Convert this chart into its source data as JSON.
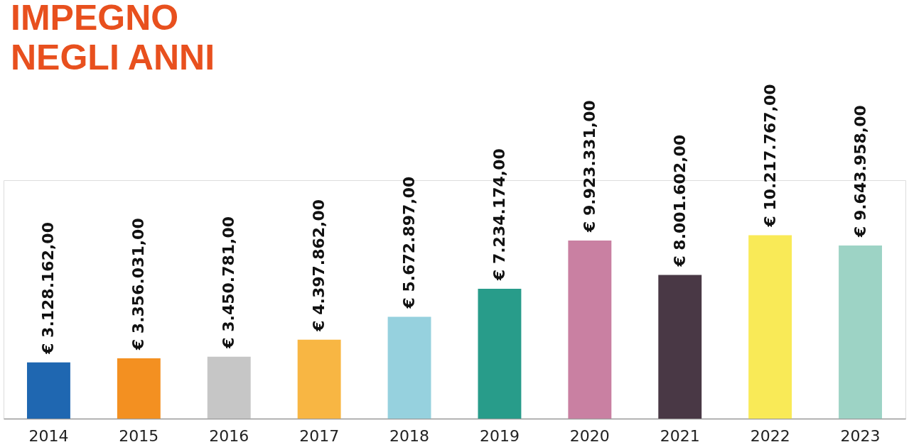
{
  "chart_data": {
    "type": "bar",
    "title": "IMPEGNO\nNEGLI ANNI",
    "categories": [
      "2014",
      "2015",
      "2016",
      "2017",
      "2018",
      "2019",
      "2020",
      "2021",
      "2022",
      "2023"
    ],
    "values": [
      3128162,
      3356031,
      3450781,
      4397862,
      5672897,
      7234174,
      9923331,
      8001602,
      10217767,
      9643958
    ],
    "colors": [
      "#1f67b1",
      "#f39021",
      "#c6c6c6",
      "#f8b643",
      "#96d1de",
      "#289c8a",
      "#c980a2",
      "#493845",
      "#f9ea57",
      "#9dd3c5"
    ],
    "value_labels": [
      "€ 3.128.162,00",
      "€ 3.356.031,00",
      "€ 3.450.781,00",
      "€ 4.397.862,00",
      "€ 5.672.897,00",
      "€ 7.234.174,00",
      "€ 9.923.331,00",
      "€ 8.001.602,00",
      "€ 10.217.767,00",
      "€ 9.643.958,00"
    ],
    "grid": false,
    "legend": false,
    "tick_labels": "x"
  }
}
